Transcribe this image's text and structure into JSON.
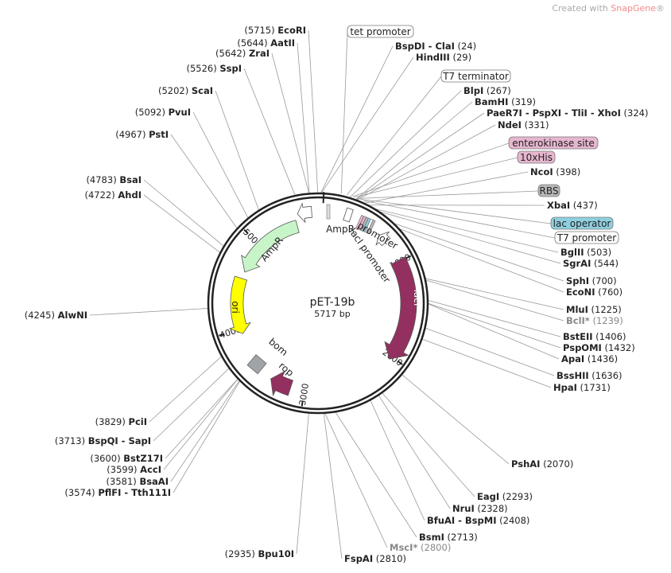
{
  "credit": {
    "prefix": "Created with ",
    "brand": "SnapGene",
    "suffix": "®"
  },
  "plasmid": {
    "name": "pET-19b",
    "size_label": "5717 bp",
    "length": 5717
  },
  "ticks": [
    "1000",
    "2000",
    "3000",
    "4000",
    "5000"
  ],
  "sites": [
    {
      "name": "EcoRI",
      "pos": 5715,
      "side": "left"
    },
    {
      "name": "AatII",
      "pos": 5644,
      "side": "left"
    },
    {
      "name": "ZraI",
      "pos": 5642,
      "side": "left"
    },
    {
      "name": "SspI",
      "pos": 5526,
      "side": "left"
    },
    {
      "name": "ScaI",
      "pos": 5202,
      "side": "left"
    },
    {
      "name": "PvuI",
      "pos": 5092,
      "side": "left"
    },
    {
      "name": "PstI",
      "pos": 4967,
      "side": "left"
    },
    {
      "name": "BsaI",
      "pos": 4783,
      "side": "left"
    },
    {
      "name": "AhdI",
      "pos": 4722,
      "side": "left"
    },
    {
      "name": "AlwNI",
      "pos": 4245,
      "side": "left"
    },
    {
      "name": "PciI",
      "pos": 3829,
      "side": "left"
    },
    {
      "name": "BspQI - SapI",
      "pos": 3713,
      "side": "left"
    },
    {
      "name": "BstZ17I",
      "pos": 3600,
      "side": "left"
    },
    {
      "name": "AccI",
      "pos": 3599,
      "side": "left"
    },
    {
      "name": "BsaAI",
      "pos": 3581,
      "side": "left"
    },
    {
      "name": "PflFI - Tth111I",
      "pos": 3574,
      "side": "left"
    },
    {
      "name": "Bpu10I",
      "pos": 2935,
      "side": "left"
    },
    {
      "name": "BspDI - ClaI",
      "pos": 24,
      "side": "right"
    },
    {
      "name": "HindIII",
      "pos": 29,
      "side": "right"
    },
    {
      "name": "BlpI",
      "pos": 267,
      "side": "right"
    },
    {
      "name": "BamHI",
      "pos": 319,
      "side": "right"
    },
    {
      "name": "PaeR7I - PspXI - TliI - XhoI",
      "pos": 324,
      "side": "right"
    },
    {
      "name": "NdeI",
      "pos": 331,
      "side": "right"
    },
    {
      "name": "NcoI",
      "pos": 398,
      "side": "right"
    },
    {
      "name": "XbaI",
      "pos": 437,
      "side": "right"
    },
    {
      "name": "BglII",
      "pos": 503,
      "side": "right"
    },
    {
      "name": "SgrAI",
      "pos": 544,
      "side": "right"
    },
    {
      "name": "SphI",
      "pos": 700,
      "side": "right"
    },
    {
      "name": "EcoNI",
      "pos": 760,
      "side": "right"
    },
    {
      "name": "MluI",
      "pos": 1225,
      "side": "right"
    },
    {
      "name": "BclI*",
      "pos": 1239,
      "side": "right",
      "methyl": true
    },
    {
      "name": "BstEII",
      "pos": 1406,
      "side": "right"
    },
    {
      "name": "PspOMI",
      "pos": 1432,
      "side": "right"
    },
    {
      "name": "ApaI",
      "pos": 1436,
      "side": "right"
    },
    {
      "name": "BssHII",
      "pos": 1636,
      "side": "right"
    },
    {
      "name": "HpaI",
      "pos": 1731,
      "side": "right"
    },
    {
      "name": "PshAI",
      "pos": 2070,
      "side": "right"
    },
    {
      "name": "EagI",
      "pos": 2293,
      "side": "right"
    },
    {
      "name": "NruI",
      "pos": 2328,
      "side": "right"
    },
    {
      "name": "BfuAI - BspMI",
      "pos": 2408,
      "side": "right"
    },
    {
      "name": "BsmI",
      "pos": 2713,
      "side": "right"
    },
    {
      "name": "MscI*",
      "pos": 2800,
      "side": "right",
      "methyl": true
    },
    {
      "name": "FspAI",
      "pos": 2810,
      "side": "right"
    }
  ],
  "feature_boxes": [
    {
      "name": "tet promoter",
      "color": "#ffffff"
    },
    {
      "name": "T7 terminator",
      "color": "#ffffff"
    },
    {
      "name": "enterokinase site",
      "color": "#e7b6cf"
    },
    {
      "name": "10xHis",
      "color": "#e7b6cf"
    },
    {
      "name": "RBS",
      "color": "#b8b8b8"
    },
    {
      "name": "lac operator",
      "color": "#8fd0e0"
    },
    {
      "name": "T7 promoter",
      "color": "#ffffff"
    }
  ],
  "features": [
    {
      "name": "AmpR",
      "color": "#c8f5c8"
    },
    {
      "name": "lacI",
      "color": "#93305f"
    },
    {
      "name": "ori",
      "color": "#ffff00"
    },
    {
      "name": "rop",
      "color": "#93305f"
    },
    {
      "name": "bom",
      "color": "#a0a4a8"
    },
    {
      "name": "AmpR promoter",
      "color": "#ffffff"
    },
    {
      "name": "lacI promoter",
      "color": "#ffffff"
    }
  ]
}
